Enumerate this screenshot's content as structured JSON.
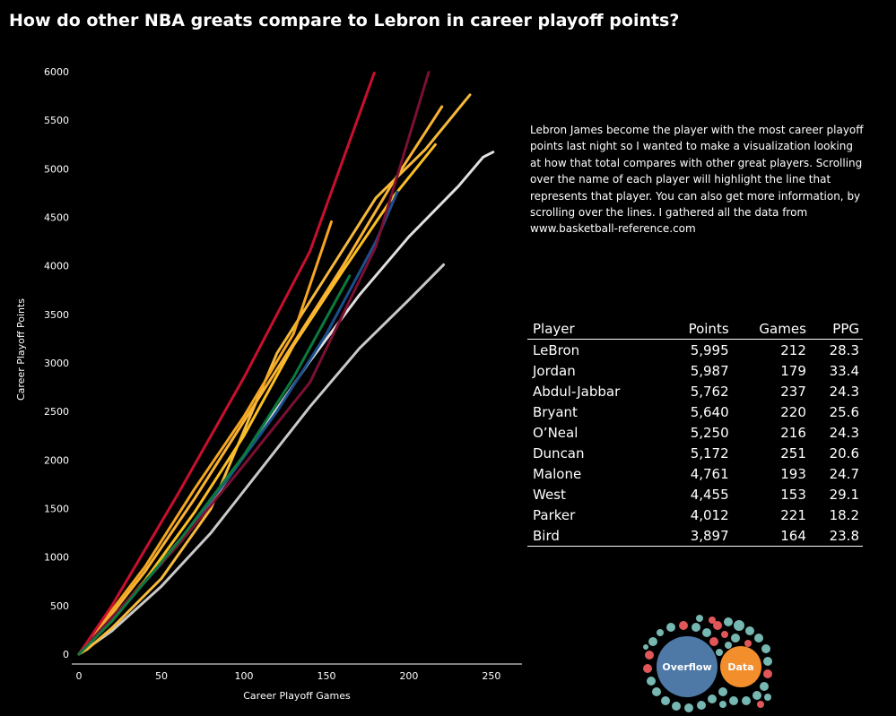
{
  "header": {
    "title": "How do other NBA greats compare to Lebron in career playoff points?"
  },
  "description": "Lebron James become the player with the most career playoff points last night so I wanted to make a visualization looking at how that total compares with other great players. Scrolling over the name of each player will highlight the line that represents that player. You can also get more information, by scrolling over the lines. I gathered all the data from www.basketball-reference.com",
  "table": {
    "headers": [
      "Player",
      "Points",
      "Games",
      "PPG"
    ],
    "rows": [
      [
        "LeBron",
        "5,995",
        "212",
        "28.3"
      ],
      [
        "Jordan",
        "5,987",
        "179",
        "33.4"
      ],
      [
        "Abdul-Jabbar",
        "5,762",
        "237",
        "24.3"
      ],
      [
        "Bryant",
        "5,640",
        "220",
        "25.6"
      ],
      [
        "O’Neal",
        "5,250",
        "216",
        "24.3"
      ],
      [
        "Duncan",
        "5,172",
        "251",
        "20.6"
      ],
      [
        "Malone",
        "4,761",
        "193",
        "24.7"
      ],
      [
        "West",
        "4,455",
        "153",
        "29.1"
      ],
      [
        "Parker",
        "4,012",
        "221",
        "18.2"
      ],
      [
        "Bird",
        "3,897",
        "164",
        "23.8"
      ]
    ]
  },
  "logo": {
    "word1": "Overflow",
    "word2": "Data",
    "colors": {
      "blue": "#4e79a7",
      "orange": "#f28e2b",
      "teal": "#76b7b2",
      "red": "#e15759"
    }
  },
  "chart_data": {
    "type": "line",
    "xlabel": "Career Playoff Games",
    "ylabel": "Career Playoff Points",
    "xlim": [
      0,
      262
    ],
    "ylim": [
      0,
      6000
    ],
    "xticks": [
      0,
      50,
      100,
      150,
      200,
      250
    ],
    "yticks": [
      0,
      500,
      1000,
      1500,
      2000,
      2500,
      3000,
      3500,
      4000,
      4500,
      5000,
      5500,
      6000
    ],
    "grid": false,
    "series": [
      {
        "color": "#e0e0e0",
        "points": [
          [
            0,
            0
          ],
          [
            10,
            200
          ],
          [
            30,
            560
          ],
          [
            50,
            950
          ],
          [
            80,
            1560
          ],
          [
            110,
            2280
          ],
          [
            140,
            3020
          ],
          [
            170,
            3700
          ],
          [
            200,
            4300
          ],
          [
            230,
            4820
          ],
          [
            245,
            5120
          ],
          [
            251,
            5172
          ]
        ]
      },
      {
        "color": "#c9c9c9",
        "points": [
          [
            0,
            0
          ],
          [
            20,
            240
          ],
          [
            50,
            700
          ],
          [
            80,
            1250
          ],
          [
            110,
            1900
          ],
          [
            140,
            2550
          ],
          [
            170,
            3150
          ],
          [
            200,
            3650
          ],
          [
            221,
            4012
          ]
        ]
      },
      {
        "color": "#f6b93b",
        "points": [
          [
            0,
            0
          ],
          [
            5,
            50
          ],
          [
            20,
            270
          ],
          [
            50,
            780
          ],
          [
            80,
            1500
          ],
          [
            100,
            2300
          ],
          [
            120,
            3100
          ],
          [
            150,
            3900
          ],
          [
            180,
            4700
          ],
          [
            210,
            5200
          ],
          [
            237,
            5762
          ]
        ]
      },
      {
        "color": "#fbbf24",
        "points": [
          [
            0,
            0
          ],
          [
            10,
            170
          ],
          [
            40,
            760
          ],
          [
            70,
            1460
          ],
          [
            100,
            2250
          ],
          [
            130,
            3180
          ],
          [
            160,
            3950
          ],
          [
            190,
            4700
          ],
          [
            216,
            5250
          ]
        ]
      },
      {
        "color": "#f9b233",
        "points": [
          [
            0,
            0
          ],
          [
            10,
            200
          ],
          [
            40,
            850
          ],
          [
            70,
            1600
          ],
          [
            100,
            2400
          ],
          [
            130,
            3200
          ],
          [
            160,
            4000
          ],
          [
            190,
            4850
          ],
          [
            220,
            5640
          ]
        ]
      },
      {
        "color": "#f5a623",
        "points": [
          [
            0,
            0
          ],
          [
            10,
            230
          ],
          [
            40,
            900
          ],
          [
            70,
            1700
          ],
          [
            100,
            2450
          ],
          [
            130,
            3300
          ],
          [
            153,
            4455
          ]
        ]
      },
      {
        "color": "#1d4f8f",
        "points": [
          [
            0,
            0
          ],
          [
            15,
            280
          ],
          [
            50,
            930
          ],
          [
            90,
            1800
          ],
          [
            120,
            2500
          ],
          [
            150,
            3300
          ],
          [
            180,
            4250
          ],
          [
            193,
            4761
          ]
        ]
      },
      {
        "color": "#7b1033",
        "points": [
          [
            0,
            0
          ],
          [
            20,
            380
          ],
          [
            60,
            1120
          ],
          [
            100,
            1950
          ],
          [
            140,
            2800
          ],
          [
            180,
            4200
          ],
          [
            212,
            5995
          ]
        ]
      },
      {
        "color": "#c8102e",
        "points": [
          [
            0,
            0
          ],
          [
            20,
            500
          ],
          [
            60,
            1650
          ],
          [
            100,
            2850
          ],
          [
            140,
            4150
          ],
          [
            179,
            5987
          ]
        ]
      },
      {
        "color": "#0b7a3e",
        "points": [
          [
            0,
            0
          ],
          [
            20,
            340
          ],
          [
            60,
            1150
          ],
          [
            100,
            2050
          ],
          [
            130,
            2850
          ],
          [
            164,
            3897
          ]
        ]
      }
    ]
  }
}
